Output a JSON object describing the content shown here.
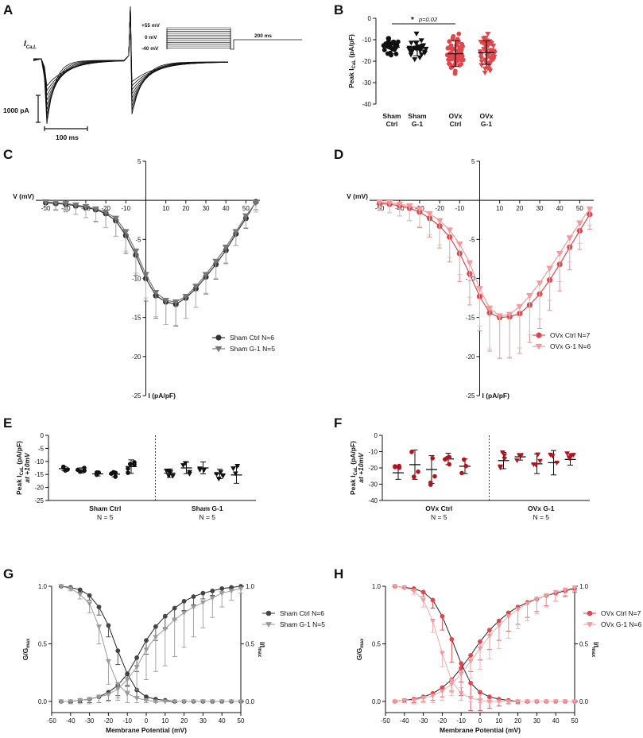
{
  "colors": {
    "dark": "#333333",
    "gray": "#8c8c8c",
    "light_gray": "#bdbdbd",
    "red": "#e0474c",
    "dark_red": "#b3141e",
    "pink": "#f29a9d"
  },
  "chart_data": [
    {
      "panel": "A",
      "type": "line",
      "description_labels": {
        "ylabel": "I",
        "ylabel_sub": "Ca,L",
        "protocol": [
          "+55 mV",
          "0 mV",
          "-40 mV"
        ],
        "duration": "200 ms",
        "scale_y": "1000 pA",
        "scale_x": "100 ms"
      }
    },
    {
      "panel": "B",
      "type": "scatter",
      "ylabel": "Peak I",
      "ylabel_sub": "CaL",
      "ylabel_unit": " (pA/pF)",
      "ylim": [
        -40,
        0
      ],
      "yticks": [
        "0",
        "-10",
        "-20",
        "-30",
        "-40"
      ],
      "groups": [
        {
          "name": [
            "Sham",
            "Ctrl"
          ],
          "mean": -13.5,
          "sd": 3,
          "marker": "circle",
          "color": "#111111"
        },
        {
          "name": [
            "Sham",
            "G-1"
          ],
          "mean": -14,
          "sd": 3.5,
          "marker": "triangle",
          "color": "#111111"
        },
        {
          "name": [
            "OVx",
            "Ctrl"
          ],
          "mean": -16.5,
          "sd": 6,
          "marker": "circle",
          "color": "#e0474c"
        },
        {
          "name": [
            "OVx",
            "G-1"
          ],
          "mean": -16,
          "sd": 5.5,
          "marker": "triangle",
          "color": "#e0474c"
        }
      ],
      "significance": {
        "star": "*",
        "p": "p=0.02"
      }
    },
    {
      "panel": "C",
      "type": "line",
      "xlabel": "V (mV)",
      "ylabel": "I (pA/pF)",
      "xlim": [
        -55,
        57
      ],
      "ylim": [
        -25,
        5
      ],
      "xticks": [
        "-50",
        "-40",
        "-30",
        "-20",
        "-10",
        "10",
        "20",
        "30",
        "40",
        "50"
      ],
      "yticks": [
        "5",
        "-5",
        "-10",
        "-15",
        "-20",
        "-25"
      ],
      "x": [
        -50,
        -45,
        -40,
        -35,
        -30,
        -25,
        -20,
        -15,
        -10,
        -5,
        0,
        5,
        10,
        15,
        20,
        25,
        30,
        35,
        40,
        45,
        50,
        55
      ],
      "series": [
        {
          "name": "Sham Ctrl",
          "n": "N=6",
          "marker": "circle",
          "color": "#333333",
          "values": [
            -0.3,
            -0.4,
            -0.5,
            -0.7,
            -0.9,
            -1.2,
            -1.7,
            -2.6,
            -4.5,
            -7.0,
            -10.0,
            -12.2,
            -13.0,
            -13.3,
            -12.5,
            -11.3,
            -9.8,
            -8.2,
            -6.4,
            -4.3,
            -2.3,
            -0.2
          ],
          "err": [
            0.6,
            0.8,
            0.9,
            1.1,
            1.3,
            1.5,
            1.8,
            2.0,
            2.3,
            2.6,
            2.9,
            2.9,
            2.9,
            2.8,
            2.6,
            2.4,
            2.2,
            1.9,
            1.7,
            1.5,
            1.3,
            1.0
          ]
        },
        {
          "name": "Sham G-1",
          "n": "N=5",
          "marker": "triangle",
          "color": "#777777",
          "values": [
            -0.2,
            -0.3,
            -0.4,
            -0.6,
            -0.8,
            -1.1,
            -1.5,
            -2.3,
            -4.0,
            -6.5,
            -9.5,
            -11.8,
            -12.8,
            -13.0,
            -12.3,
            -11.0,
            -9.5,
            -7.8,
            -6.0,
            -4.0,
            -2.0,
            -0.3
          ],
          "err": [
            0.8,
            1.0,
            1.1,
            1.2,
            1.4,
            1.7,
            2.0,
            2.3,
            2.5,
            2.8,
            3.0,
            3.1,
            3.1,
            3.0,
            2.8,
            2.7,
            2.4,
            2.2,
            2.0,
            1.8,
            1.5,
            1.2
          ]
        }
      ]
    },
    {
      "panel": "D",
      "type": "line",
      "xlabel": "V (mV)",
      "ylabel": "I (pA/pF)",
      "xlim": [
        -55,
        57
      ],
      "ylim": [
        -25,
        5
      ],
      "xticks": [
        "-50",
        "-40",
        "-30",
        "-20",
        "-10",
        "10",
        "20",
        "30",
        "40",
        "50"
      ],
      "yticks": [
        "5",
        "-5",
        "-10",
        "-15",
        "-20",
        "-25"
      ],
      "x": [
        -50,
        -45,
        -40,
        -35,
        -30,
        -25,
        -20,
        -15,
        -10,
        -5,
        0,
        5,
        10,
        15,
        20,
        25,
        30,
        35,
        40,
        45,
        50,
        55
      ],
      "series": [
        {
          "name": "OVx Ctrl",
          "n": "N=7",
          "marker": "circle",
          "color": "#e0474c",
          "values": [
            -0.4,
            -0.5,
            -0.7,
            -1.0,
            -1.5,
            -2.3,
            -3.3,
            -4.7,
            -6.8,
            -9.4,
            -12.3,
            -14.4,
            -15.0,
            -14.9,
            -14.5,
            -13.4,
            -12.0,
            -10.2,
            -8.2,
            -6.0,
            -3.9,
            -1.8
          ],
          "err": [
            0.9,
            1.1,
            1.3,
            1.6,
            2.0,
            2.4,
            2.8,
            3.2,
            3.6,
            4.0,
            4.4,
            4.9,
            5.2,
            5.3,
            5.1,
            4.8,
            4.4,
            3.9,
            3.4,
            2.9,
            2.4,
            1.9
          ]
        },
        {
          "name": "OVx G-1",
          "n": "N=6",
          "marker": "triangle",
          "color": "#f29a9d",
          "values": [
            -0.2,
            -0.3,
            -0.5,
            -0.7,
            -1.1,
            -1.7,
            -2.6,
            -3.8,
            -5.6,
            -8.0,
            -11.3,
            -13.8,
            -14.8,
            -14.6,
            -13.6,
            -12.2,
            -10.6,
            -8.7,
            -6.8,
            -4.8,
            -2.9,
            -1.1
          ],
          "err": [
            1.0,
            1.3,
            1.5,
            1.9,
            2.3,
            2.7,
            3.1,
            3.5,
            3.9,
            4.4,
            4.8,
            5.2,
            5.5,
            5.5,
            5.3,
            5.0,
            4.6,
            4.1,
            3.6,
            3.1,
            2.6,
            2.1
          ]
        }
      ]
    },
    {
      "panel": "E",
      "type": "scatter",
      "ylabel": "Peak I",
      "ylabel_sub": "CaL",
      "ylabel_unit": " (pA/pF)",
      "ylabel2": "at +10mV",
      "ylim": [
        -25,
        0
      ],
      "yticks": [
        "0",
        "-5",
        "-10",
        "-15",
        "-20",
        "-25"
      ],
      "groups": [
        {
          "name": "Sham Ctrl",
          "n": "N = 5",
          "marker": "circle",
          "color": "#111111",
          "means": [
            -12.8,
            -13.5,
            -14.8,
            -14.9,
            -12.0
          ],
          "sds": [
            0.8,
            1.0,
            0.8,
            1.0,
            2.6
          ]
        },
        {
          "name": "Sham G-1",
          "n": "N = 5",
          "marker": "triangle",
          "color": "#111111",
          "means": [
            -14.5,
            -12.5,
            -12.5,
            -14.8,
            -15.2
          ],
          "sds": [
            1.6,
            2.2,
            2.3,
            1.8,
            3.2
          ]
        }
      ]
    },
    {
      "panel": "F",
      "type": "scatter",
      "ylabel": "Peak I",
      "ylabel_sub": "CaL",
      "ylabel_unit": " (pA/pF)",
      "ylabel2": "at +10mV",
      "ylim": [
        -40,
        0
      ],
      "yticks": [
        "0",
        "-10",
        "-20",
        "-30",
        "-40"
      ],
      "groups": [
        {
          "name": "OVx Ctrl",
          "n": "N = 5",
          "marker": "circle",
          "color": "#b3141e",
          "means": [
            -23.0,
            -18.0,
            -21.0,
            -14.5,
            -19.0
          ],
          "sds": [
            4.0,
            9.0,
            8.5,
            3.5,
            4.5
          ]
        },
        {
          "name": "OVx G-1",
          "n": "N = 5",
          "marker": "triangle",
          "color": "#b3141e",
          "means": [
            -15.5,
            -13.2,
            -17.5,
            -16.8,
            -14.8
          ],
          "sds": [
            5.0,
            2.0,
            6.0,
            7.5,
            3.5
          ]
        }
      ]
    },
    {
      "panel": "G",
      "type": "line",
      "xlabel": "Membrane Potential (mV)",
      "ylabel": "G/G",
      "ylabel_sub": "max",
      "ylabel2": "I/I",
      "ylabel2_sub": "max",
      "xlim": [
        -50,
        50
      ],
      "ylim": [
        0,
        1
      ],
      "xticks": [
        "-50",
        "-40",
        "-30",
        "-20",
        "-10",
        "0",
        "10",
        "20",
        "30",
        "40",
        "50"
      ],
      "yticks": [
        "0.0",
        "0.5",
        "1.0"
      ],
      "activation_x": [
        -45,
        -40,
        -35,
        -30,
        -25,
        -20,
        -15,
        -10,
        -5,
        0,
        5,
        10,
        15,
        20,
        25,
        30,
        35,
        40,
        45,
        50
      ],
      "inactivation_x": [
        -45,
        -40,
        -35,
        -30,
        -25,
        -20,
        -15,
        -10,
        -5,
        0,
        5,
        10,
        15,
        20,
        25,
        30,
        35,
        40,
        45,
        50
      ],
      "series": [
        {
          "name": "Sham Ctrl",
          "n": "N=6",
          "marker": "circle",
          "color": "#444444",
          "activation": [
            0.0,
            0.0,
            0.01,
            0.02,
            0.04,
            0.08,
            0.14,
            0.24,
            0.38,
            0.53,
            0.65,
            0.74,
            0.81,
            0.87,
            0.91,
            0.94,
            0.96,
            0.98,
            0.99,
            1.0
          ],
          "act_err": [
            0.01,
            0.01,
            0.02,
            0.03,
            0.05,
            0.07,
            0.09,
            0.11,
            0.12,
            0.12,
            0.12,
            0.11,
            0.1,
            0.08,
            0.07,
            0.05,
            0.04,
            0.03,
            0.02,
            0.01
          ],
          "inactivation": [
            1.0,
            0.99,
            0.97,
            0.92,
            0.82,
            0.66,
            0.44,
            0.24,
            0.1,
            0.04,
            0.02,
            0.01,
            0.0,
            0.0,
            0.0,
            0.0,
            0.0,
            0.0,
            0.0,
            0.0
          ],
          "inact_err": [
            0.0,
            0.01,
            0.02,
            0.04,
            0.07,
            0.1,
            0.12,
            0.1,
            0.06,
            0.03,
            0.02,
            0.01,
            0.01,
            0.0,
            0.0,
            0.0,
            0.0,
            0.0,
            0.0,
            0.0
          ]
        },
        {
          "name": "Sham G-1",
          "n": "N=5",
          "marker": "triangle",
          "color": "#9a9a9a",
          "activation": [
            0.0,
            0.0,
            0.01,
            0.02,
            0.04,
            0.06,
            0.11,
            0.19,
            0.3,
            0.45,
            0.56,
            0.63,
            0.71,
            0.77,
            0.82,
            0.86,
            0.9,
            0.94,
            0.96,
            0.98
          ],
          "act_err": [
            0.01,
            0.02,
            0.03,
            0.04,
            0.05,
            0.06,
            0.08,
            0.1,
            0.2,
            0.26,
            0.3,
            0.32,
            0.32,
            0.3,
            0.26,
            0.22,
            0.17,
            0.12,
            0.08,
            0.04
          ],
          "inactivation": [
            1.0,
            0.98,
            0.93,
            0.85,
            0.65,
            0.35,
            0.15,
            0.07,
            0.03,
            0.01,
            0.0,
            0.0,
            0.0,
            0.0,
            0.0,
            0.0,
            0.0,
            0.0,
            0.0,
            0.0
          ],
          "inact_err": [
            0.0,
            0.02,
            0.04,
            0.08,
            0.15,
            0.2,
            0.14,
            0.08,
            0.04,
            0.02,
            0.01,
            0.0,
            0.0,
            0.0,
            0.0,
            0.0,
            0.0,
            0.0,
            0.0,
            0.0
          ]
        }
      ]
    },
    {
      "panel": "H",
      "type": "line",
      "xlabel": "Membrane Potential (mV)",
      "ylabel": "G/G",
      "ylabel_sub": "max",
      "ylabel2": "I/I",
      "ylabel2_sub": "max",
      "xlim": [
        -50,
        50
      ],
      "ylim": [
        0,
        1
      ],
      "xticks": [
        "-50",
        "-40",
        "-30",
        "-20",
        "-10",
        "0",
        "10",
        "20",
        "30",
        "40",
        "50"
      ],
      "yticks": [
        "0.0",
        "0.5",
        "1.0"
      ],
      "activation_x": [
        -45,
        -40,
        -35,
        -30,
        -25,
        -20,
        -15,
        -10,
        -5,
        0,
        5,
        10,
        15,
        20,
        25,
        30,
        35,
        40,
        45,
        50
      ],
      "inactivation_x": [
        -45,
        -40,
        -35,
        -30,
        -25,
        -20,
        -15,
        -10,
        -5,
        0,
        5,
        10,
        15,
        20,
        25,
        30,
        35,
        40,
        45,
        50
      ],
      "series": [
        {
          "name": "OVx Ctrl",
          "n": "N=7",
          "marker": "circle",
          "color": "#e0474c",
          "activation": [
            0.0,
            0.01,
            0.02,
            0.04,
            0.07,
            0.12,
            0.19,
            0.29,
            0.4,
            0.52,
            0.62,
            0.7,
            0.77,
            0.82,
            0.86,
            0.89,
            0.92,
            0.94,
            0.96,
            0.98
          ],
          "act_err": [
            0.01,
            0.02,
            0.03,
            0.04,
            0.06,
            0.08,
            0.1,
            0.12,
            0.14,
            0.16,
            0.17,
            0.17,
            0.16,
            0.15,
            0.13,
            0.11,
            0.09,
            0.07,
            0.05,
            0.03
          ],
          "inactivation": [
            1.0,
            0.99,
            0.98,
            0.95,
            0.88,
            0.74,
            0.54,
            0.33,
            0.16,
            0.08,
            0.04,
            0.02,
            0.01,
            0.0,
            0.0,
            0.0,
            0.0,
            0.0,
            0.0,
            0.0
          ],
          "inact_err": [
            0.0,
            0.01,
            0.02,
            0.04,
            0.07,
            0.12,
            0.2,
            0.28,
            0.24,
            0.16,
            0.1,
            0.06,
            0.03,
            0.02,
            0.01,
            0.0,
            0.0,
            0.0,
            0.0,
            0.0
          ]
        },
        {
          "name": "OVx G-1",
          "n": "N=6",
          "marker": "triangle",
          "color": "#f29a9d",
          "activation": [
            0.0,
            0.01,
            0.01,
            0.03,
            0.05,
            0.09,
            0.15,
            0.24,
            0.35,
            0.46,
            0.57,
            0.66,
            0.74,
            0.8,
            0.85,
            0.89,
            0.92,
            0.95,
            0.97,
            0.99
          ],
          "act_err": [
            0.01,
            0.02,
            0.03,
            0.04,
            0.06,
            0.08,
            0.1,
            0.12,
            0.15,
            0.18,
            0.2,
            0.2,
            0.19,
            0.17,
            0.15,
            0.13,
            0.1,
            0.08,
            0.05,
            0.03
          ],
          "inactivation": [
            1.0,
            0.99,
            0.96,
            0.88,
            0.7,
            0.42,
            0.18,
            0.07,
            0.03,
            0.01,
            0.0,
            0.0,
            0.0,
            0.0,
            0.0,
            0.0,
            0.0,
            0.0,
            0.0,
            0.0
          ],
          "inact_err": [
            0.0,
            0.01,
            0.03,
            0.06,
            0.1,
            0.12,
            0.1,
            0.06,
            0.03,
            0.02,
            0.01,
            0.0,
            0.0,
            0.0,
            0.0,
            0.0,
            0.0,
            0.0,
            0.0,
            0.0
          ]
        }
      ]
    }
  ]
}
